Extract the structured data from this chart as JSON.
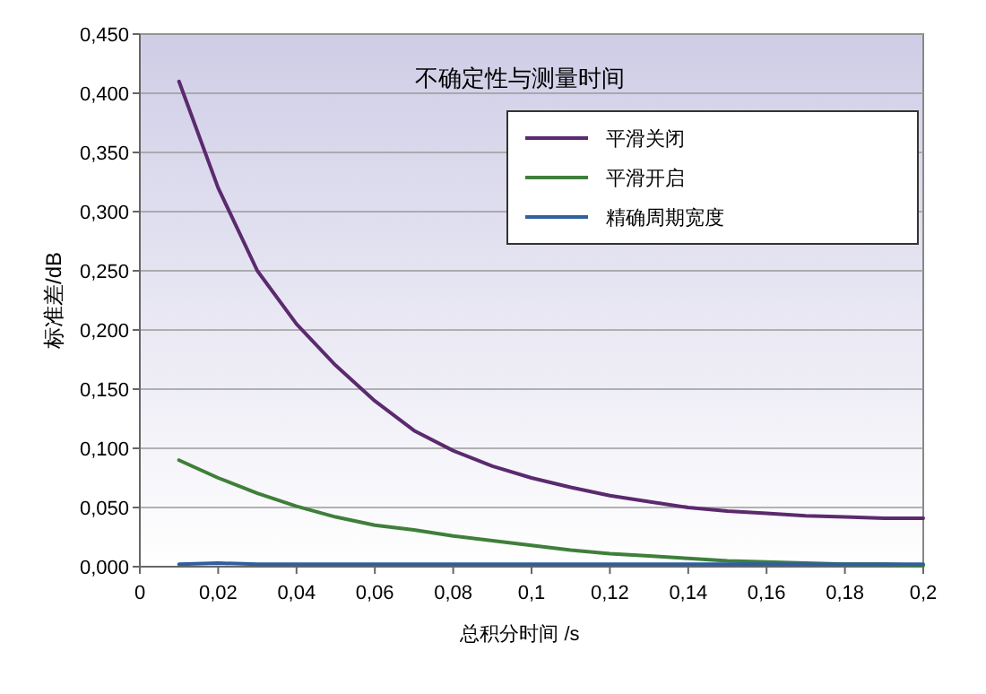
{
  "chart_data": {
    "type": "line",
    "title": "不确定性与测量时间",
    "xlabel": "总积分时间 /s",
    "ylabel": "标准差/dB",
    "x": [
      0.01,
      0.02,
      0.03,
      0.04,
      0.05,
      0.06,
      0.07,
      0.08,
      0.09,
      0.1,
      0.11,
      0.12,
      0.13,
      0.14,
      0.15,
      0.16,
      0.17,
      0.18,
      0.19,
      0.2
    ],
    "series": [
      {
        "name": "平滑关闭",
        "color": "#5b2a6e",
        "values": [
          0.41,
          0.32,
          0.25,
          0.205,
          0.17,
          0.14,
          0.115,
          0.098,
          0.085,
          0.075,
          0.067,
          0.06,
          0.055,
          0.05,
          0.047,
          0.045,
          0.043,
          0.042,
          0.041,
          0.041
        ]
      },
      {
        "name": "平滑开启",
        "color": "#3f7f3a",
        "values": [
          0.09,
          0.075,
          0.062,
          0.051,
          0.042,
          0.035,
          0.031,
          0.026,
          0.022,
          0.018,
          0.014,
          0.011,
          0.009,
          0.007,
          0.005,
          0.004,
          0.003,
          0.002,
          0.002,
          0.001
        ]
      },
      {
        "name": "精确周期宽度",
        "color": "#2f5f9f",
        "values": [
          0.002,
          0.003,
          0.002,
          0.002,
          0.002,
          0.002,
          0.002,
          0.002,
          0.002,
          0.002,
          0.002,
          0.002,
          0.002,
          0.002,
          0.002,
          0.002,
          0.002,
          0.002,
          0.002,
          0.002
        ]
      }
    ],
    "xlim": [
      0,
      0.2
    ],
    "xticks": [
      0,
      {
        "value": 0.02,
        "label": "0,02"
      },
      {
        "value": 0.04,
        "label": "0,04"
      },
      {
        "value": 0.06,
        "label": "0,06"
      },
      {
        "value": 0.08,
        "label": "0,08"
      },
      {
        "value": 0.1,
        "label": "0,1"
      },
      {
        "value": 0.12,
        "label": "0,12"
      },
      {
        "value": 0.14,
        "label": "0,14"
      },
      {
        "value": 0.16,
        "label": "0,16"
      },
      {
        "value": 0.18,
        "label": "0,18"
      },
      {
        "value": 0.2,
        "label": "0,2"
      }
    ],
    "ylim": [
      0,
      0.45
    ],
    "yticks": [
      {
        "value": 0,
        "label": "0,000"
      },
      {
        "value": 0.05,
        "label": "0,050"
      },
      {
        "value": 0.1,
        "label": "0,100"
      },
      {
        "value": 0.15,
        "label": "0,150"
      },
      {
        "value": 0.2,
        "label": "0,200"
      },
      {
        "value": 0.25,
        "label": "0,250"
      },
      {
        "value": 0.3,
        "label": "0,300"
      },
      {
        "value": 0.35,
        "label": "0,350"
      },
      {
        "value": 0.4,
        "label": "0,400"
      },
      {
        "value": 0.45,
        "label": "0,450"
      }
    ],
    "grid": "y",
    "legend": "top right",
    "marker": "none",
    "line_style": "solid"
  }
}
